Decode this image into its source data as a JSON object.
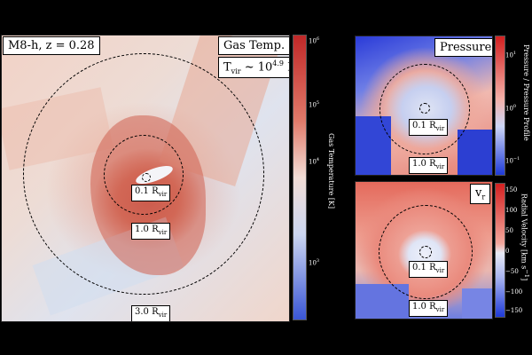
{
  "main_panel": {
    "halo_label": "M8-h, z  = 0.28",
    "field_label": "Gas Temp.",
    "tvir_prefix": "T",
    "tvir_sub": "vir",
    "tvir_mid": " ~ 10",
    "tvir_exp": "4.9",
    "tvir_unit": " K",
    "circles": [
      {
        "text": "0.1 R",
        "sub": "vir"
      },
      {
        "text": "1.0 R",
        "sub": "vir"
      },
      {
        "text": "3.0 R",
        "sub": "vir"
      }
    ]
  },
  "main_colorbar": {
    "label": "Gas Temperature [K]",
    "ticks": [
      {
        "base": "10",
        "exp": "6"
      },
      {
        "base": "10",
        "exp": "5"
      },
      {
        "base": "10",
        "exp": "4"
      },
      {
        "base": "10",
        "exp": "3"
      }
    ]
  },
  "pressure_panel": {
    "title": "Pressure",
    "circles": [
      {
        "text": "0.1 R",
        "sub": "vir"
      },
      {
        "text": "1.0 R",
        "sub": "vir"
      }
    ]
  },
  "pressure_colorbar": {
    "label": "Pressure / Pressure Profile",
    "ticks": [
      {
        "base": "10",
        "exp": "1"
      },
      {
        "base": "10",
        "exp": "0"
      },
      {
        "base": "10",
        "exp": "−1"
      }
    ]
  },
  "vr_panel": {
    "title_base": "v",
    "title_sub": "r",
    "circles": [
      {
        "text": "0.1 R",
        "sub": "vir"
      },
      {
        "text": "1.0 R",
        "sub": "vir"
      }
    ]
  },
  "vr_colorbar": {
    "label": "Radial Velocity [km s",
    "label_exp": "−1",
    "label_end": "]",
    "ticks": [
      "150",
      "100",
      "50",
      "0",
      "−50",
      "−100",
      "−150"
    ]
  }
}
